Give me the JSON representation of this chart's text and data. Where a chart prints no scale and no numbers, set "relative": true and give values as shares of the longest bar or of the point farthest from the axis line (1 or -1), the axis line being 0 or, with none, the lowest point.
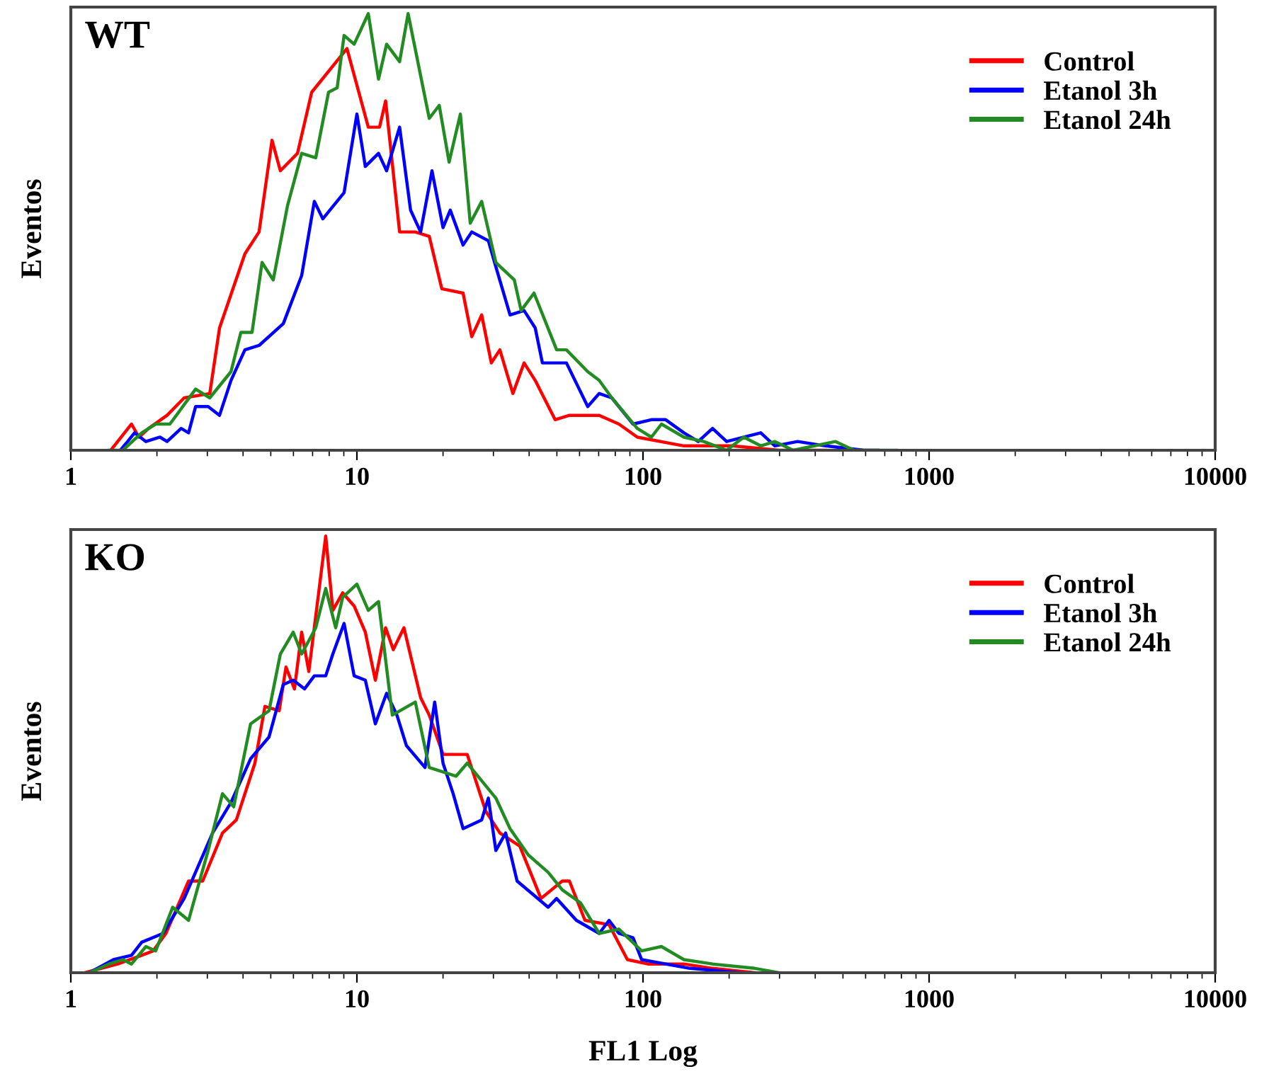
{
  "chart_data": [
    {
      "type": "line",
      "title": "WT",
      "ylabel": "Eventos",
      "relative": true,
      "log": "x",
      "xlim": [
        1,
        10000
      ],
      "xticks": [
        1,
        10,
        100,
        1000,
        10000
      ],
      "legend": "top right",
      "grid": false,
      "tick_labels": "x",
      "series": [
        {
          "name": "Control",
          "color": "#ff0000",
          "x": [
            1.38,
            1.63,
            1.73,
            1.87,
            2.17,
            2.49,
            3.06,
            3.31,
            4.06,
            4.55,
            5.05,
            5.4,
            6.2,
            6.95,
            9.23,
            10.96,
            12.0,
            12.6,
            14.1,
            16.0,
            17.9,
            19.8,
            23.5,
            25.2,
            27.3,
            29.5,
            31.6,
            35.1,
            38.4,
            42.0,
            49.3,
            55.3,
            70.3,
            82.4,
            95.5,
            139,
            205,
            299,
            435
          ],
          "values": [
            0,
            0.06,
            0.03,
            0.05,
            0.08,
            0.12,
            0.13,
            0.28,
            0.45,
            0.5,
            0.71,
            0.64,
            0.68,
            0.82,
            0.92,
            0.74,
            0.74,
            0.8,
            0.5,
            0.5,
            0.49,
            0.37,
            0.36,
            0.26,
            0.31,
            0.2,
            0.23,
            0.13,
            0.2,
            0.16,
            0.07,
            0.08,
            0.08,
            0.06,
            0.03,
            0.01,
            0.01,
            0.0,
            0
          ]
        },
        {
          "name": "Etanol 3h",
          "color": "#0000ff",
          "x": [
            1.49,
            1.58,
            1.67,
            1.83,
            2.05,
            2.17,
            2.43,
            2.58,
            2.73,
            3.02,
            3.31,
            3.63,
            4.06,
            4.55,
            5.53,
            6.41,
            7.1,
            7.6,
            9.02,
            10.0,
            10.7,
            11.9,
            12.7,
            14.1,
            15.4,
            16.7,
            18.3,
            20.0,
            21.2,
            23.5,
            25.2,
            28.8,
            30.6,
            34.3,
            38.4,
            42.0,
            44.5,
            54.0,
            64.1,
            70.3,
            77.8,
            92.3,
            107,
            120,
            139,
            156,
            175,
            196,
            258,
            289,
            347,
            435,
            592,
            663
          ],
          "values": [
            0,
            0.02,
            0.04,
            0.02,
            0.03,
            0.02,
            0.05,
            0.04,
            0.1,
            0.1,
            0.08,
            0.16,
            0.23,
            0.24,
            0.29,
            0.4,
            0.57,
            0.53,
            0.59,
            0.77,
            0.65,
            0.68,
            0.64,
            0.74,
            0.55,
            0.5,
            0.64,
            0.51,
            0.55,
            0.47,
            0.5,
            0.48,
            0.42,
            0.31,
            0.32,
            0.28,
            0.2,
            0.2,
            0.1,
            0.13,
            0.12,
            0.06,
            0.07,
            0.07,
            0.04,
            0.02,
            0.05,
            0.02,
            0.04,
            0.01,
            0.02,
            0.01,
            0.0,
            0
          ]
        },
        {
          "name": "Etanol 24h",
          "color": "#228b22",
          "x": [
            1.36,
            1.52,
            1.77,
            1.98,
            2.22,
            2.73,
            3.06,
            3.63,
            3.93,
            4.3,
            4.66,
            5.1,
            5.72,
            6.41,
            7.18,
            7.96,
            8.53,
            9.02,
            9.78,
            10.96,
            11.9,
            12.7,
            14.1,
            15.1,
            17.9,
            19.4,
            21.0,
            23.0,
            24.9,
            27.3,
            30.6,
            35.5,
            37.5,
            41.6,
            49.9,
            54.0,
            64.1,
            70.3,
            77.8,
            95.5,
            107,
            116,
            139,
            163,
            196,
            225,
            258,
            289,
            335,
            471,
            547,
            769
          ],
          "values": [
            0,
            0.0,
            0.04,
            0.06,
            0.06,
            0.14,
            0.12,
            0.18,
            0.27,
            0.27,
            0.43,
            0.39,
            0.56,
            0.68,
            0.67,
            0.82,
            0.83,
            0.95,
            0.93,
            1.0,
            0.85,
            0.93,
            0.89,
            1.0,
            0.76,
            0.79,
            0.66,
            0.77,
            0.52,
            0.57,
            0.43,
            0.39,
            0.32,
            0.36,
            0.23,
            0.23,
            0.18,
            0.16,
            0.12,
            0.05,
            0.03,
            0.06,
            0.03,
            0.02,
            0.0,
            0.03,
            0.01,
            0.02,
            0.0,
            0.02,
            0.0,
            0
          ]
        }
      ]
    },
    {
      "type": "line",
      "title": "KO",
      "xlabel": "FL1 Log",
      "ylabel": "Eventos",
      "relative": true,
      "log": "x",
      "xlim": [
        1,
        10000
      ],
      "xticks": [
        1,
        10,
        100,
        1000,
        10000
      ],
      "legend": "top right",
      "grid": false,
      "tick_labels": "x",
      "series": [
        {
          "name": "Control",
          "color": "#ff0000",
          "x": [
            1.12,
            1.46,
            1.77,
            1.94,
            2.15,
            2.58,
            2.89,
            3.39,
            3.79,
            4.4,
            4.77,
            5.35,
            5.65,
            6.05,
            6.41,
            6.79,
            7.35,
            7.78,
            8.24,
            8.92,
            9.78,
            10.7,
            11.6,
            12.6,
            13.4,
            14.6,
            16.7,
            17.9,
            20.0,
            24.3,
            28.2,
            31.6,
            37.1,
            44.0,
            52.2,
            55.3,
            62.7,
            76.1,
            88.2,
            104,
            139,
            175,
            246
          ],
          "values": [
            0,
            0.02,
            0.04,
            0.05,
            0.09,
            0.21,
            0.21,
            0.32,
            0.35,
            0.48,
            0.61,
            0.6,
            0.7,
            0.65,
            0.78,
            0.69,
            0.87,
            1.0,
            0.83,
            0.87,
            0.84,
            0.78,
            0.67,
            0.79,
            0.74,
            0.79,
            0.63,
            0.59,
            0.5,
            0.5,
            0.37,
            0.32,
            0.29,
            0.17,
            0.21,
            0.21,
            0.12,
            0.11,
            0.03,
            0.02,
            0.02,
            0.01,
            0
          ]
        },
        {
          "name": "Etanol 3h",
          "color": "#0000ff",
          "x": [
            1.16,
            1.41,
            1.63,
            1.77,
            2.1,
            2.49,
            3.13,
            3.63,
            4.25,
            4.93,
            5.53,
            5.99,
            6.56,
            7.1,
            7.78,
            8.24,
            9.02,
            9.78,
            10.7,
            11.6,
            12.7,
            13.8,
            14.9,
            17.3,
            18.7,
            20.0,
            21.7,
            23.5,
            27.3,
            28.8,
            30.6,
            33.1,
            36.3,
            46.6,
            49.9,
            58.5,
            70.3,
            76.1,
            82.4,
            92.3,
            98.9,
            146,
            220
          ],
          "values": [
            0,
            0.03,
            0.04,
            0.07,
            0.09,
            0.17,
            0.32,
            0.39,
            0.49,
            0.54,
            0.66,
            0.67,
            0.65,
            0.68,
            0.68,
            0.73,
            0.8,
            0.68,
            0.67,
            0.57,
            0.64,
            0.59,
            0.52,
            0.47,
            0.62,
            0.48,
            0.41,
            0.33,
            0.35,
            0.4,
            0.28,
            0.32,
            0.21,
            0.15,
            0.17,
            0.12,
            0.09,
            0.12,
            0.09,
            0.08,
            0.03,
            0.01,
            0
          ]
        },
        {
          "name": "Etanol 24h",
          "color": "#228b22",
          "x": [
            1.16,
            1.36,
            1.52,
            1.63,
            1.83,
            1.98,
            2.27,
            2.58,
            3.02,
            3.39,
            3.71,
            4.25,
            4.93,
            5.4,
            5.99,
            6.41,
            7.18,
            7.78,
            8.43,
            8.92,
            10.0,
            10.96,
            11.9,
            13.3,
            16.0,
            17.9,
            20.0,
            22.2,
            24.3,
            30.6,
            34.3,
            39.7,
            46.6,
            52.2,
            60.5,
            70.3,
            82.4,
            98.9,
            116,
            139,
            175,
            246,
            299
          ],
          "values": [
            0,
            0.02,
            0.03,
            0.02,
            0.06,
            0.05,
            0.15,
            0.12,
            0.28,
            0.41,
            0.38,
            0.57,
            0.6,
            0.73,
            0.78,
            0.73,
            0.79,
            0.88,
            0.79,
            0.86,
            0.89,
            0.83,
            0.85,
            0.59,
            0.62,
            0.47,
            0.46,
            0.45,
            0.48,
            0.4,
            0.33,
            0.27,
            0.23,
            0.19,
            0.16,
            0.09,
            0.1,
            0.05,
            0.06,
            0.03,
            0.02,
            0.01,
            0
          ]
        }
      ]
    }
  ]
}
